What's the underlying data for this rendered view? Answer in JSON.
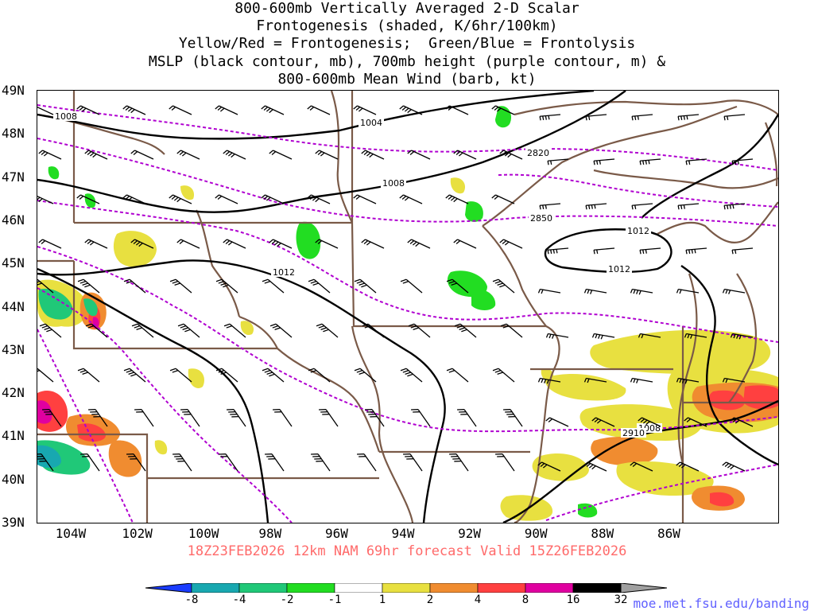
{
  "title": {
    "line1": "800-600mb Vertically Averaged 2-D Scalar",
    "line2": "Frontogenesis (shaded, K/6hr/100km)",
    "line3": "Yellow/Red = Frontogenesis;  Green/Blue = Frontolysis",
    "line4": "MSLP (black contour, mb), 700mb height (purple contour, m) &",
    "line5": "800-600mb Mean Wind (barb, kt)"
  },
  "map": {
    "lat_labels": [
      "49N",
      "48N",
      "47N",
      "46N",
      "45N",
      "44N",
      "43N",
      "42N",
      "41N",
      "40N",
      "39N"
    ],
    "lon_labels": [
      "104W",
      "102W",
      "100W",
      "98W",
      "96W",
      "94W",
      "92W",
      "90W",
      "88W",
      "86W"
    ],
    "contour_labels": {
      "mslp": [
        "1008",
        "1004",
        "1008",
        "1012",
        "1012",
        "1012",
        "1008"
      ],
      "height": [
        "2820",
        "2850",
        "2910"
      ]
    },
    "colors": {
      "mslp": "#000000",
      "height": "#b000d0",
      "borders": "#7a5a48",
      "barbs": "#000000"
    }
  },
  "valid_text": "18Z23FEB2026 12km NAM 69hr forecast Valid 15Z26FEB2026",
  "colorbar": {
    "labels": [
      "-8",
      "-4",
      "-2",
      "-1",
      "1",
      "2",
      "4",
      "8",
      "16",
      "32"
    ],
    "colors": [
      "#1a3cff",
      "#18a8b0",
      "#20c878",
      "#22dd22",
      "#ffffff",
      "#e8e040",
      "#f08c30",
      "#ff4040",
      "#e000a0",
      "#000000",
      "#a0a0a0"
    ]
  },
  "credit": "moe.met.fsu.edu/banding"
}
